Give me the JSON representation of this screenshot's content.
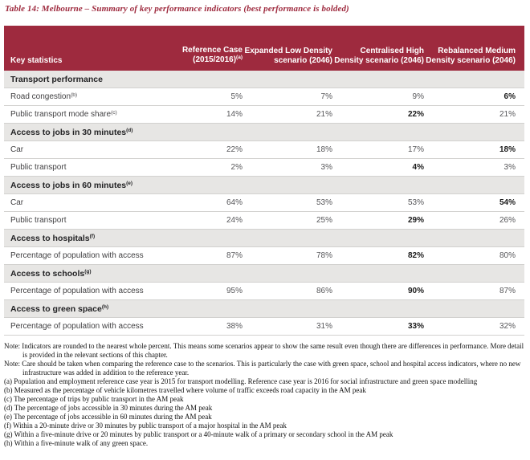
{
  "title": "Table 14: Melbourne – Summary of key performance indicators (best performance is bolded)",
  "colors": {
    "header_bg": "#9e2a3e",
    "section_bg": "#e7e6e4",
    "title_text": "#9e2a3e",
    "row_border": "#d2d1cf"
  },
  "table": {
    "header": [
      {
        "label": "Key statistics"
      },
      {
        "label": "Reference Case (2015/2016)",
        "sup": "a"
      },
      {
        "label": "Expanded Low Density scenario (2046)"
      },
      {
        "label": "Centralised High Density scenario (2046)"
      },
      {
        "label": "Rebalanced Medium Density scenario (2046)"
      }
    ],
    "rows": [
      {
        "type": "section",
        "label": "Transport performance"
      },
      {
        "type": "data",
        "label": "Road congestion",
        "sup": "b",
        "values": [
          "5%",
          "7%",
          "9%",
          "6%"
        ],
        "bold": [
          false,
          false,
          false,
          true
        ]
      },
      {
        "type": "data",
        "label": "Public transport mode share",
        "sup": "c",
        "values": [
          "14%",
          "21%",
          "22%",
          "21%"
        ],
        "bold": [
          false,
          false,
          true,
          false
        ]
      },
      {
        "type": "section",
        "label": "Access to jobs in 30 minutes",
        "sup": "d"
      },
      {
        "type": "data",
        "label": "Car",
        "values": [
          "22%",
          "18%",
          "17%",
          "18%"
        ],
        "bold": [
          false,
          false,
          false,
          true
        ]
      },
      {
        "type": "data",
        "label": "Public transport",
        "values": [
          "2%",
          "3%",
          "4%",
          "3%"
        ],
        "bold": [
          false,
          false,
          true,
          false
        ]
      },
      {
        "type": "section",
        "label": "Access to jobs in 60 minutes",
        "sup": "e"
      },
      {
        "type": "data",
        "label": "Car",
        "values": [
          "64%",
          "53%",
          "53%",
          "54%"
        ],
        "bold": [
          false,
          false,
          false,
          true
        ]
      },
      {
        "type": "data",
        "label": "Public transport",
        "values": [
          "24%",
          "25%",
          "29%",
          "26%"
        ],
        "bold": [
          false,
          false,
          true,
          false
        ]
      },
      {
        "type": "section",
        "label": "Access to hospitals",
        "sup": "f"
      },
      {
        "type": "data",
        "label": "Percentage of population with access",
        "values": [
          "87%",
          "78%",
          "82%",
          "80%"
        ],
        "bold": [
          false,
          false,
          true,
          false
        ]
      },
      {
        "type": "section",
        "label": "Access to schools",
        "sup": "g"
      },
      {
        "type": "data",
        "label": "Percentage of population with access",
        "values": [
          "95%",
          "86%",
          "90%",
          "87%"
        ],
        "bold": [
          false,
          false,
          true,
          false
        ]
      },
      {
        "type": "section",
        "label": "Access to green space",
        "sup": "h"
      },
      {
        "type": "data",
        "label": "Percentage of population with access",
        "values": [
          "38%",
          "31%",
          "33%",
          "32%"
        ],
        "bold": [
          false,
          false,
          true,
          false
        ]
      }
    ]
  },
  "notes": [
    {
      "prefix": "Note:",
      "text": "Indicators are rounded to the nearest whole percent. This means some scenarios appear to show the same result even though there are differences in performance. More detail is provided in the relevant sections of this chapter."
    },
    {
      "prefix": "Note:",
      "text": "Care should be taken when comparing the reference case to the scenarios. This is particularly the case with green space, school and hospital access indicators, where no new infrastructure was added in addition to the reference year."
    }
  ],
  "footnotes": [
    {
      "marker": "(a)",
      "text": "Population and employment reference case year is 2015 for transport modelling. Reference case year is 2016 for social infrastructure and green space modelling"
    },
    {
      "marker": "(b)",
      "text": "Measured as the percentage of vehicle kilometres travelled where volume of traffic exceeds road capacity in the AM peak"
    },
    {
      "marker": "(c)",
      "text": "The percentage of trips by public transport in the AM peak"
    },
    {
      "marker": "(d)",
      "text": "The percentage of jobs accessible in 30 minutes during the AM peak"
    },
    {
      "marker": "(e)",
      "text": "The percentage of jobs accessible in 60 minutes during the AM peak"
    },
    {
      "marker": "(f)",
      "text": "Within a 20-minute drive or 30 minutes by public transport of a major hospital in the AM peak"
    },
    {
      "marker": "(g)",
      "text": "Within a five-minute drive or 20 minutes by public transport or a 40-minute walk of a primary or secondary school in the AM peak"
    },
    {
      "marker": "(h)",
      "text": "Within a five-minute walk of any green space."
    }
  ]
}
